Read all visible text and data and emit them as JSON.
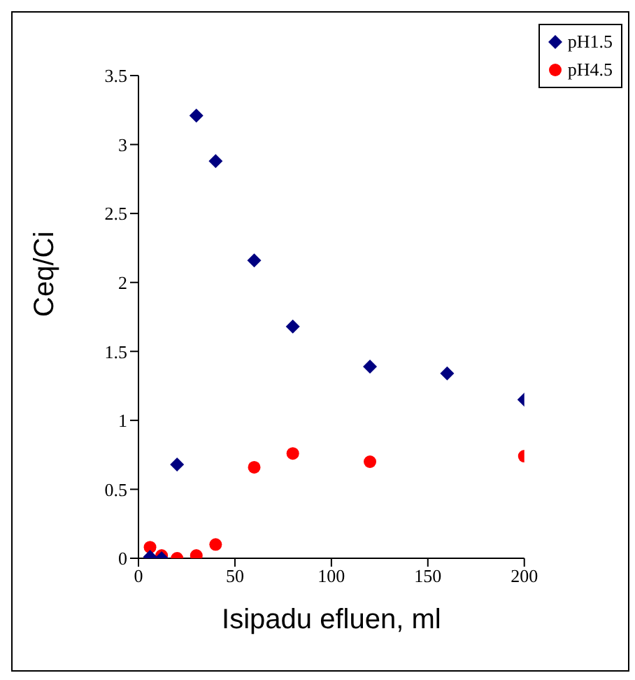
{
  "chart_data": {
    "type": "scatter",
    "xlabel": "Isipadu efluen, ml",
    "ylabel": "Ceq/Ci",
    "xlim": [
      0,
      200
    ],
    "xticks": [
      0,
      50,
      100,
      150,
      200
    ],
    "ylim": [
      0,
      3.5
    ],
    "yticks": [
      0,
      0.5,
      1,
      1.5,
      2,
      2.5,
      3,
      3.5
    ],
    "grid": false,
    "legend": "top right",
    "series": [
      {
        "name": "pH1.5",
        "color": "#000080",
        "marker": "diamond",
        "x": [
          6,
          12,
          20,
          30,
          40,
          60,
          80,
          120,
          160,
          200
        ],
        "values": [
          0.01,
          0,
          0.68,
          3.21,
          2.88,
          2.16,
          1.68,
          1.39,
          1.34,
          1.15
        ]
      },
      {
        "name": "pH4.5",
        "color": "#ff0000",
        "marker": "circle",
        "x": [
          6,
          12,
          20,
          30,
          40,
          60,
          80,
          120,
          200
        ],
        "values": [
          0.08,
          0.02,
          0,
          0.02,
          0.1,
          0.66,
          0.76,
          0.7,
          0.74
        ]
      }
    ]
  }
}
